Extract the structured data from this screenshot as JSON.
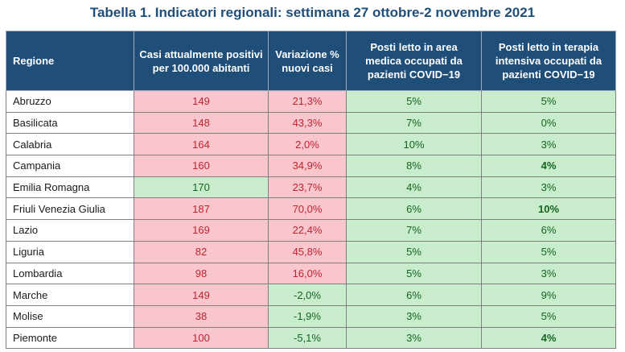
{
  "title": "Tabella 1. Indicatori regionali: settimana 27 ottobre-2 novembre 2021",
  "columns": [
    "Regione",
    "Casi attualmente positivi per 100.000 abitanti",
    "Variazione % nuovi casi",
    "Posti letto in area medica occupati da pazienti COVID−19",
    "Posti letto in terapia intensiva occupati da pazienti COVID−19"
  ],
  "colors": {
    "header_bg": "#1f4e79",
    "red_bg": "#f9c6cd",
    "red_text": "#c0242f",
    "green_bg": "#c9eccd",
    "green_text": "#14641f"
  },
  "rows": [
    {
      "region": "Abruzzo",
      "casi": "149",
      "casi_status": "red",
      "variazione": "21,3%",
      "var_status": "red",
      "area_medica": "5%",
      "am_status": "green",
      "terapia_intensiva": "5%",
      "ti_status": "green"
    },
    {
      "region": "Basilicata",
      "casi": "148",
      "casi_status": "red",
      "variazione": "43,3%",
      "var_status": "red",
      "area_medica": "7%",
      "am_status": "green",
      "terapia_intensiva": "0%",
      "ti_status": "green"
    },
    {
      "region": "Calabria",
      "casi": "164",
      "casi_status": "red",
      "variazione": "2,0%",
      "var_status": "red",
      "area_medica": "10%",
      "am_status": "green",
      "terapia_intensiva": "3%",
      "ti_status": "green"
    },
    {
      "region": "Campania",
      "casi": "160",
      "casi_status": "red",
      "variazione": "34,9%",
      "var_status": "red",
      "area_medica": "8%",
      "am_status": "green",
      "terapia_intensiva": "4%",
      "ti_status": "green"
    },
    {
      "region": "Emilia Romagna",
      "casi": "170",
      "casi_status": "green",
      "variazione": "23,7%",
      "var_status": "red",
      "area_medica": "4%",
      "am_status": "green",
      "terapia_intensiva": "3%",
      "ti_status": "green"
    },
    {
      "region": "Friuli Venezia Giulia",
      "casi": "187",
      "casi_status": "red",
      "variazione": "70,0%",
      "var_status": "red",
      "area_medica": "6%",
      "am_status": "green",
      "terapia_intensiva": "10%",
      "ti_status": "green"
    },
    {
      "region": "Lazio",
      "casi": "169",
      "casi_status": "red",
      "variazione": "22,4%",
      "var_status": "red",
      "area_medica": "7%",
      "am_status": "green",
      "terapia_intensiva": "6%",
      "ti_status": "green"
    },
    {
      "region": "Liguria",
      "casi": "82",
      "casi_status": "red",
      "variazione": "45,8%",
      "var_status": "red",
      "area_medica": "5%",
      "am_status": "green",
      "terapia_intensiva": "5%",
      "ti_status": "green"
    },
    {
      "region": "Lombardia",
      "casi": "98",
      "casi_status": "red",
      "variazione": "16,0%",
      "var_status": "red",
      "area_medica": "5%",
      "am_status": "green",
      "terapia_intensiva": "3%",
      "ti_status": "green"
    },
    {
      "region": "Marche",
      "casi": "149",
      "casi_status": "red",
      "variazione": "-2,0%",
      "var_status": "green",
      "area_medica": "6%",
      "am_status": "green",
      "terapia_intensiva": "9%",
      "ti_status": "green"
    },
    {
      "region": "Molise",
      "casi": "38",
      "casi_status": "red",
      "variazione": "-1,9%",
      "var_status": "green",
      "area_medica": "3%",
      "am_status": "green",
      "terapia_intensiva": "5%",
      "ti_status": "green"
    },
    {
      "region": "Piemonte",
      "casi": "100",
      "casi_status": "red",
      "variazione": "-5,1%",
      "var_status": "green",
      "area_medica": "3%",
      "am_status": "green",
      "terapia_intensiva": "4%",
      "ti_status": "green"
    }
  ]
}
